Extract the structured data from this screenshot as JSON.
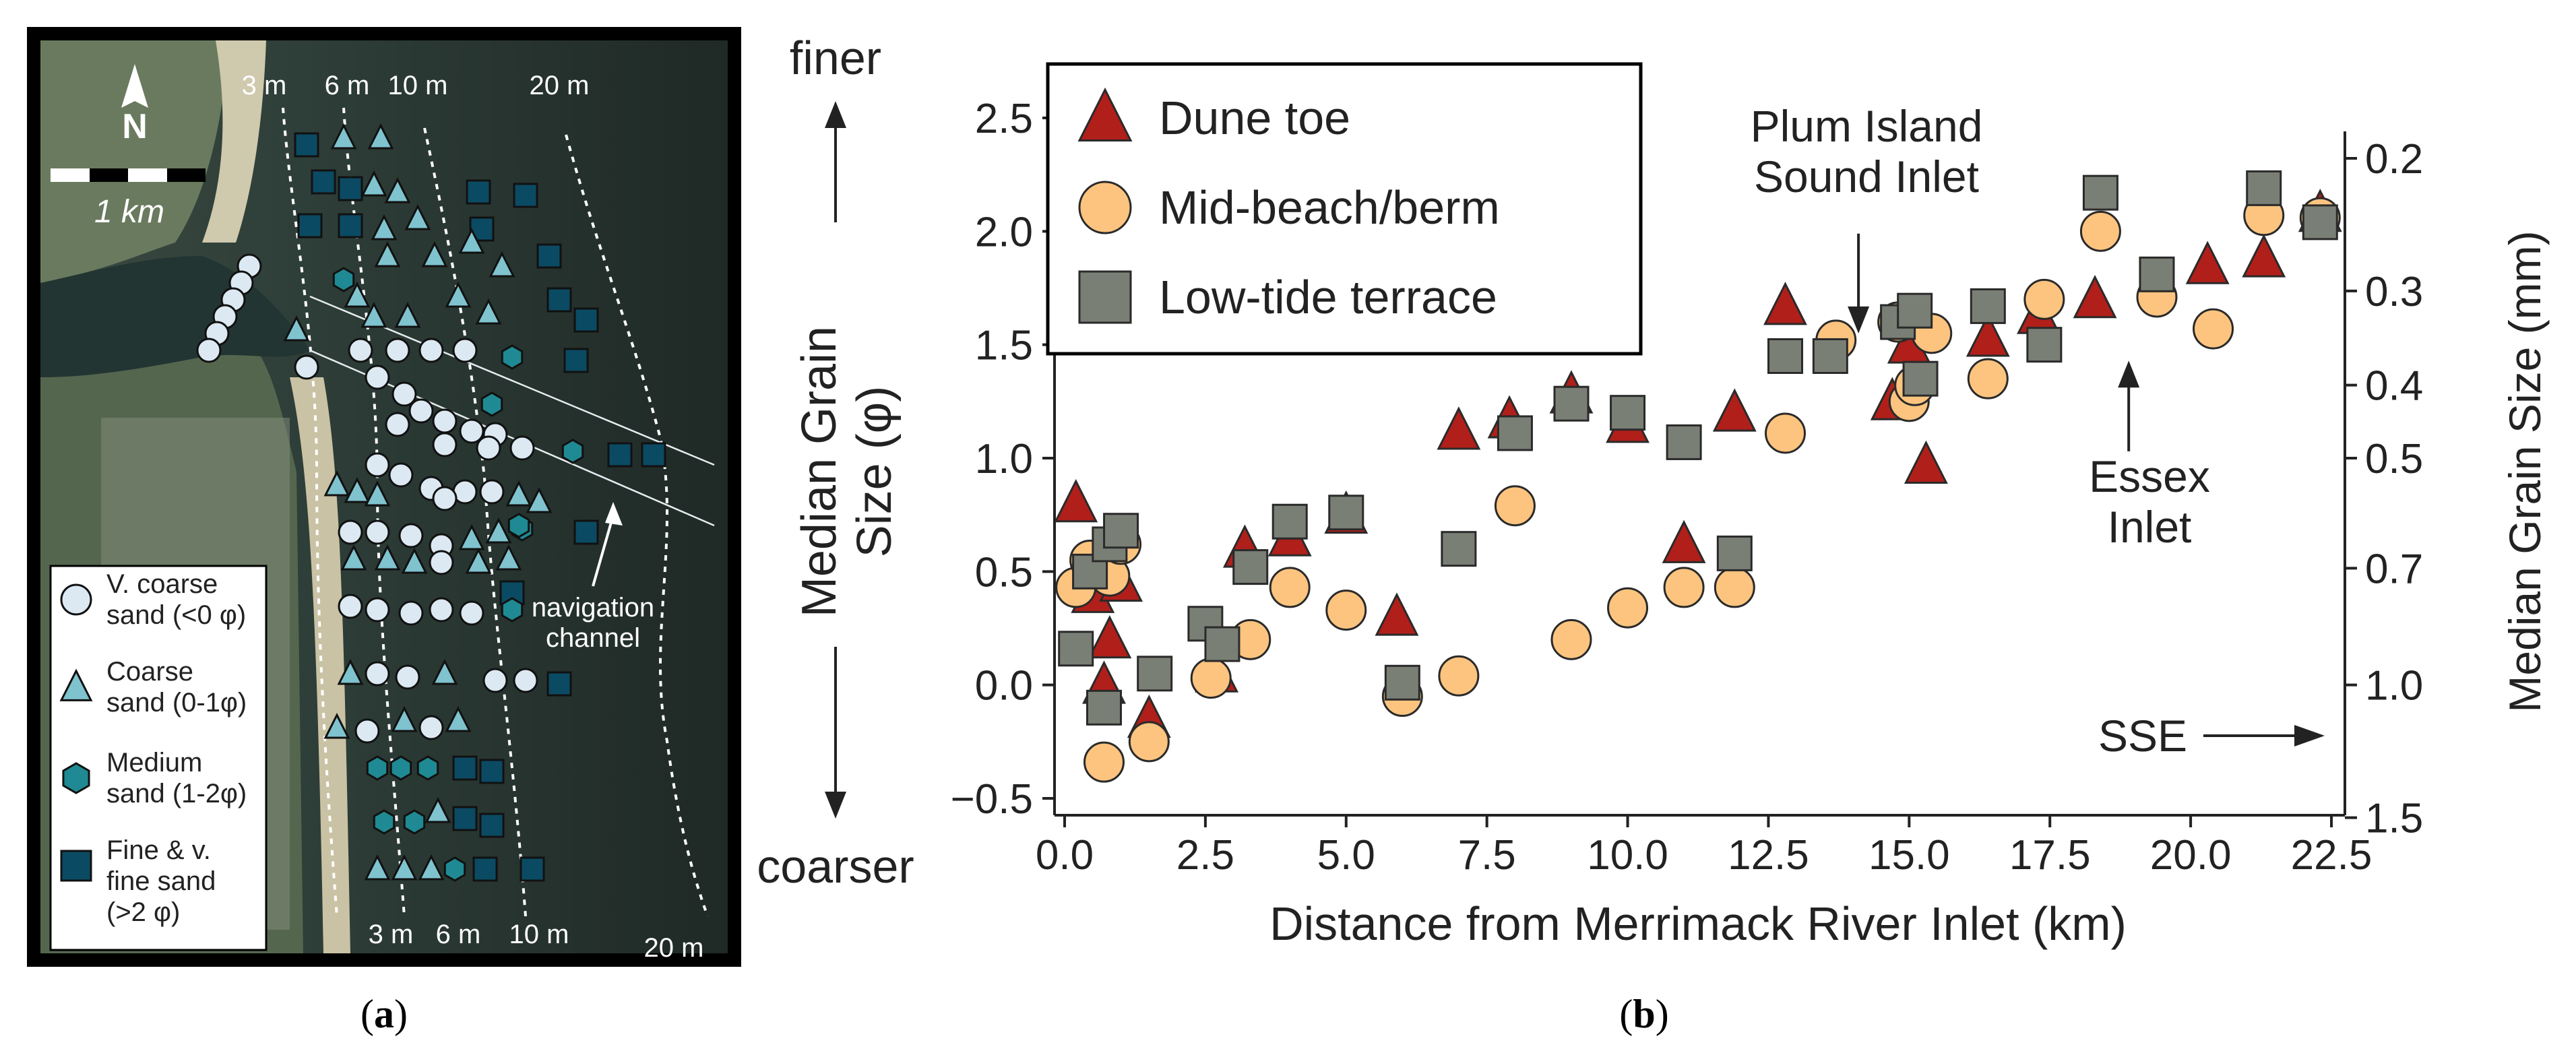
{
  "panel_a": {
    "caption": "(a)",
    "caption_letter": "a",
    "north_label": "N",
    "scale_label": "1 km",
    "depth_top": [
      "3 m",
      "6 m",
      "10 m",
      "20 m"
    ],
    "depth_bottom": [
      "3 m",
      "6 m",
      "10 m",
      "20 m"
    ],
    "nav_label_1": "navigation",
    "nav_label_2": "channel",
    "legend": [
      {
        "line1": "V. coarse",
        "line2": "sand (<0 φ)",
        "marker": "circle",
        "color": "#dce9f2"
      },
      {
        "line1": "Coarse",
        "line2": "sand (0-1φ)",
        "marker": "triangle",
        "color": "#7fc3cf"
      },
      {
        "line1": "Medium",
        "line2": "sand (1-2φ)",
        "marker": "hexagon",
        "color": "#1f8a93"
      },
      {
        "line1": "Fine & v.",
        "line2": "fine sand",
        "line3": "(>2 φ)",
        "marker": "square",
        "color": "#0b4a63"
      }
    ],
    "colors": {
      "ocean": "#2c3a36",
      "beach": "#c7c2a8",
      "land": "#5b6a55",
      "frame": "#000000"
    }
  },
  "panel_b": {
    "caption": "(b)",
    "caption_letter": "b"
  },
  "chart_data": {
    "type": "scatter",
    "title": "",
    "xlabel": "Distance from Merrimack River Inlet (km)",
    "ylabel_line1": "Median Grain",
    "ylabel_line2": "Size (φ)",
    "y2label": "Median Grain Size (mm)",
    "finer_label": "finer",
    "coarser_label": "coarser",
    "sse_label": "SSE",
    "xlim": [
      0,
      22.5
    ],
    "ylim": [
      -0.5,
      2.5
    ],
    "xticks": [
      0.0,
      2.5,
      5.0,
      7.5,
      10.0,
      12.5,
      15.0,
      17.5,
      20.0,
      22.5
    ],
    "xtick_labels": [
      "0.0",
      "2.5",
      "5.0",
      "7.5",
      "10.0",
      "12.5",
      "15.0",
      "17.5",
      "20.0",
      "22.5"
    ],
    "yticks": [
      -0.5,
      0.0,
      0.5,
      1.0,
      1.5,
      2.0,
      2.5
    ],
    "ytick_labels": [
      "−0.5",
      "0.0",
      "0.5",
      "1.0",
      "1.5",
      "2.0",
      "2.5"
    ],
    "y2ticks": [
      0.2,
      0.3,
      0.4,
      0.5,
      0.7,
      1.0,
      1.5
    ],
    "y2tick_labels": [
      "0.2",
      "0.3",
      "0.4",
      "0.5",
      "0.7",
      "1.0",
      "1.5"
    ],
    "annotations": [
      {
        "line1": "Plum Island",
        "line2": "Sound Inlet",
        "x": 14.1,
        "arrow_from": 1.99,
        "arrow_to": 1.55
      },
      {
        "line1": "Essex",
        "line2": "Inlet",
        "x": 18.9,
        "arrow_from": 1.03,
        "arrow_to": 1.43
      }
    ],
    "legend_position": "top-left",
    "series": [
      {
        "name": "Dune toe",
        "marker": "triangle",
        "color": "#b01f1a",
        "points": [
          [
            0.2,
            0.8
          ],
          [
            0.5,
            0.4
          ],
          [
            0.7,
            0.0
          ],
          [
            0.8,
            0.2
          ],
          [
            1.0,
            0.45
          ],
          [
            1.5,
            -0.15
          ],
          [
            2.7,
            0.05
          ],
          [
            3.2,
            0.6
          ],
          [
            4.0,
            0.65
          ],
          [
            5.0,
            0.75
          ],
          [
            5.9,
            0.3
          ],
          [
            7.0,
            1.12
          ],
          [
            7.9,
            1.17
          ],
          [
            9.0,
            1.28
          ],
          [
            10.0,
            1.15
          ],
          [
            11.0,
            0.62
          ],
          [
            11.9,
            1.2
          ],
          [
            12.8,
            1.67
          ],
          [
            14.7,
            1.25
          ],
          [
            15.0,
            1.5
          ],
          [
            15.3,
            0.97
          ],
          [
            16.4,
            1.53
          ],
          [
            17.3,
            1.63
          ],
          [
            18.3,
            1.7
          ],
          [
            20.3,
            1.85
          ],
          [
            21.3,
            1.88
          ],
          [
            22.3,
            2.08
          ]
        ]
      },
      {
        "name": "Mid-beach/berm",
        "marker": "circle",
        "color": "#fcc47f",
        "points": [
          [
            0.2,
            0.43
          ],
          [
            0.45,
            0.55
          ],
          [
            0.7,
            -0.34
          ],
          [
            0.8,
            0.48
          ],
          [
            1.0,
            0.62
          ],
          [
            1.5,
            -0.25
          ],
          [
            2.6,
            0.03
          ],
          [
            3.3,
            0.2
          ],
          [
            4.0,
            0.43
          ],
          [
            5.0,
            0.33
          ],
          [
            6.0,
            -0.05
          ],
          [
            7.0,
            0.04
          ],
          [
            8.0,
            0.79
          ],
          [
            9.0,
            0.2
          ],
          [
            10.0,
            0.34
          ],
          [
            11.0,
            0.43
          ],
          [
            11.9,
            0.43
          ],
          [
            12.8,
            1.11
          ],
          [
            13.7,
            1.52
          ],
          [
            14.8,
            1.6
          ],
          [
            15.0,
            1.25
          ],
          [
            15.1,
            1.32
          ],
          [
            15.4,
            1.55
          ],
          [
            16.4,
            1.35
          ],
          [
            17.4,
            1.7
          ],
          [
            18.4,
            2.0
          ],
          [
            19.4,
            1.71
          ],
          [
            20.4,
            1.57
          ],
          [
            21.3,
            2.07
          ],
          [
            22.3,
            2.06
          ]
        ]
      },
      {
        "name": "Low-tide terrace",
        "marker": "square",
        "color": "#7a7f76",
        "points": [
          [
            0.2,
            0.16
          ],
          [
            0.45,
            0.5
          ],
          [
            0.7,
            -0.1
          ],
          [
            0.8,
            0.62
          ],
          [
            1.0,
            0.68
          ],
          [
            1.6,
            0.05
          ],
          [
            2.5,
            0.27
          ],
          [
            2.8,
            0.18
          ],
          [
            3.3,
            0.52
          ],
          [
            4.0,
            0.72
          ],
          [
            5.0,
            0.76
          ],
          [
            6.0,
            0.01
          ],
          [
            7.0,
            0.6
          ],
          [
            8.0,
            1.11
          ],
          [
            9.0,
            1.24
          ],
          [
            10.0,
            1.2
          ],
          [
            11.0,
            1.07
          ],
          [
            11.9,
            0.58
          ],
          [
            12.8,
            1.45
          ],
          [
            13.6,
            1.45
          ],
          [
            14.8,
            1.6
          ],
          [
            15.1,
            1.65
          ],
          [
            15.2,
            1.35
          ],
          [
            16.4,
            1.67
          ],
          [
            17.4,
            1.5
          ],
          [
            18.4,
            2.17
          ],
          [
            19.4,
            1.81
          ],
          [
            21.3,
            2.19
          ],
          [
            22.3,
            2.04
          ]
        ]
      }
    ]
  }
}
